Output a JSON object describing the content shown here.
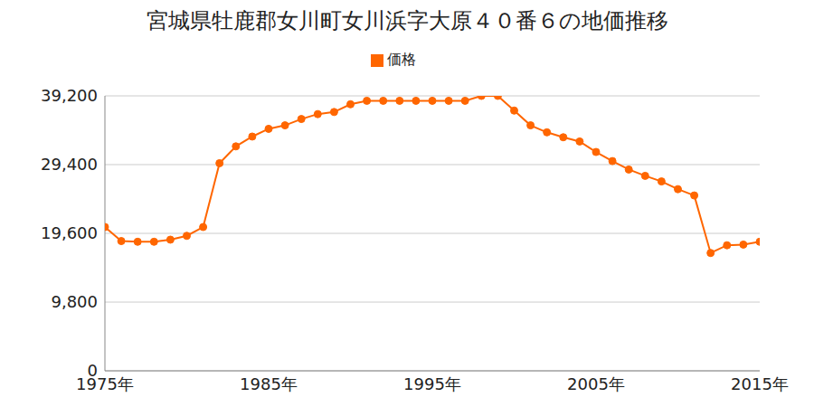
{
  "chart_data": {
    "type": "line",
    "title": "宮城県牡鹿郡女川町女川浜字大原４０番６の地価推移",
    "x": [
      1975,
      1976,
      1977,
      1978,
      1979,
      1980,
      1981,
      1982,
      1983,
      1984,
      1985,
      1986,
      1987,
      1988,
      1989,
      1990,
      1991,
      1992,
      1993,
      1994,
      1995,
      1996,
      1997,
      1998,
      1999,
      2000,
      2001,
      2002,
      2003,
      2004,
      2005,
      2006,
      2007,
      2008,
      2009,
      2010,
      2011,
      2012,
      2013,
      2014,
      2015
    ],
    "series": [
      {
        "name": "価格",
        "color": "#ff6600",
        "marker": "circle",
        "values": [
          20500,
          18500,
          18400,
          18400,
          18700,
          19250,
          20500,
          29600,
          32000,
          33400,
          34500,
          35000,
          35900,
          36600,
          36900,
          38000,
          38500,
          38500,
          38500,
          38500,
          38500,
          38500,
          38500,
          39200,
          39200,
          37100,
          35000,
          34000,
          33300,
          32700,
          31200,
          29900,
          28700,
          27800,
          27000,
          25900,
          25000,
          16800,
          17900,
          18000,
          18400
        ]
      }
    ],
    "xlim": [
      1975,
      2015
    ],
    "xticks": [
      {
        "value": 1975,
        "label": "1975年"
      },
      {
        "value": 1985,
        "label": "1985年"
      },
      {
        "value": 1995,
        "label": "1995年"
      },
      {
        "value": 2005,
        "label": "2005年"
      },
      {
        "value": 2015,
        "label": "2015年"
      }
    ],
    "ylim": [
      0,
      39200
    ],
    "yticks": [
      0,
      {
        "value": 9800,
        "label": "9,800"
      },
      {
        "value": 19600,
        "label": "19,600"
      },
      {
        "value": 29400,
        "label": "29,400"
      },
      {
        "value": 39200,
        "label": "39,200"
      }
    ],
    "grid": true,
    "legend": "top"
  }
}
